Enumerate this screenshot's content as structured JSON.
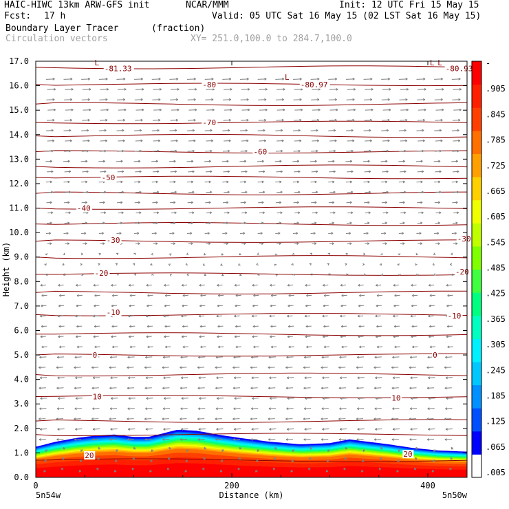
{
  "header": {
    "model": "HAIC-HIWC 13km ARW-GFS init",
    "org": "NCAR/MMM",
    "init": "Init: 12 UTC Fri 15 May 15",
    "fcst_label": "Fcst:",
    "fcst_value": "17 h",
    "valid": "Valid: 05 UTC Sat 16 May 15 (02 LST Sat 16 May 15)",
    "field": "Boundary Layer Tracer",
    "field_units": "(fraction)",
    "vectors": "Circulation vectors",
    "xy": "XY= 251.0,100.0 to 284.7,100.0"
  },
  "colors": {
    "contour": "#8b0000",
    "vector": "#808080",
    "axis": "#000000",
    "colorbar": [
      "#ffffff",
      "#0000ff",
      "#0050ff",
      "#0090ff",
      "#00c8ff",
      "#00f0ff",
      "#00ffc0",
      "#00ff80",
      "#40ff40",
      "#80ff00",
      "#c0ff00",
      "#f0ff00",
      "#ffd000",
      "#ffa000",
      "#ff7000",
      "#ff4000",
      "#ff2000",
      "#ff0000"
    ]
  },
  "chart_data": {
    "type": "heatmap",
    "xlabel": "Distance (km)",
    "ylabel": "Height (km)",
    "xlim": [
      0,
      440
    ],
    "ylim": [
      0.0,
      17.0
    ],
    "x_ticks": [
      {
        "v": 0,
        "label": "0"
      },
      {
        "v": 200,
        "label": "200"
      },
      {
        "v": 400,
        "label": "400"
      }
    ],
    "x_end_labels": {
      "left": "5n54w",
      "right": "5n50w"
    },
    "y_ticks": [
      {
        "v": 0.0,
        "label": "0.0"
      },
      {
        "v": 1.0,
        "label": "1.0"
      },
      {
        "v": 2.0,
        "label": "2.0"
      },
      {
        "v": 3.0,
        "label": "3.0"
      },
      {
        "v": 4.0,
        "label": "4.0"
      },
      {
        "v": 5.0,
        "label": "5.0"
      },
      {
        "v": 6.0,
        "label": "6.0"
      },
      {
        "v": 7.0,
        "label": "7.0"
      },
      {
        "v": 8.0,
        "label": "8.0"
      },
      {
        "v": 9.0,
        "label": "9.0"
      },
      {
        "v": 10.0,
        "label": "10.0"
      },
      {
        "v": 11.0,
        "label": "11.0"
      },
      {
        "v": 12.0,
        "label": "12.0"
      },
      {
        "v": 13.0,
        "label": "13.0"
      },
      {
        "v": 14.0,
        "label": "14.0"
      },
      {
        "v": 15.0,
        "label": "15.0"
      },
      {
        "v": 16.0,
        "label": "16.0"
      },
      {
        "v": 17.0,
        "label": "17.0"
      }
    ],
    "colorbar_labels": [
      "-",
      ".905",
      ".845",
      ".785",
      ".725",
      ".665",
      ".605",
      ".545",
      ".485",
      ".425",
      ".365",
      ".305",
      ".245",
      ".185",
      ".125",
      ".065",
      ".005"
    ],
    "colorbar_values": [
      0.965,
      0.905,
      0.845,
      0.785,
      0.725,
      0.665,
      0.605,
      0.545,
      0.485,
      0.425,
      0.365,
      0.305,
      0.245,
      0.185,
      0.125,
      0.065,
      0.005
    ],
    "boundary_layer_top": [
      {
        "x": 0,
        "h": 1.25
      },
      {
        "x": 20,
        "h": 1.45
      },
      {
        "x": 40,
        "h": 1.6
      },
      {
        "x": 60,
        "h": 1.7
      },
      {
        "x": 80,
        "h": 1.75
      },
      {
        "x": 100,
        "h": 1.65
      },
      {
        "x": 115,
        "h": 1.65
      },
      {
        "x": 130,
        "h": 1.8
      },
      {
        "x": 145,
        "h": 1.95
      },
      {
        "x": 165,
        "h": 1.9
      },
      {
        "x": 185,
        "h": 1.75
      },
      {
        "x": 210,
        "h": 1.6
      },
      {
        "x": 240,
        "h": 1.45
      },
      {
        "x": 270,
        "h": 1.35
      },
      {
        "x": 300,
        "h": 1.4
      },
      {
        "x": 320,
        "h": 1.55
      },
      {
        "x": 340,
        "h": 1.45
      },
      {
        "x": 360,
        "h": 1.35
      },
      {
        "x": 385,
        "h": 1.2
      },
      {
        "x": 410,
        "h": 1.1
      },
      {
        "x": 440,
        "h": 1.05
      }
    ],
    "isotherm_heights": [
      0.7,
      1.75,
      2.3,
      3.3,
      4.2,
      5.0,
      5.85,
      6.65,
      7.55,
      8.3,
      9.0,
      9.65,
      10.35,
      11.0,
      11.6,
      12.25,
      12.7,
      13.3,
      13.95,
      14.5,
      15.25,
      16.05,
      16.75
    ],
    "contour_labels": [
      {
        "text": "20",
        "x": 50,
        "h": 0.9
      },
      {
        "text": "20",
        "x": 375,
        "h": 0.95
      },
      {
        "text": "10",
        "x": 58,
        "h": 3.3
      },
      {
        "text": "10",
        "x": 363,
        "h": 3.25
      },
      {
        "text": "0",
        "x": 58,
        "h": 5.0
      },
      {
        "text": "0",
        "x": 405,
        "h": 5.0
      },
      {
        "text": "-10",
        "x": 72,
        "h": 6.75
      },
      {
        "text": "-10",
        "x": 420,
        "h": 6.6
      },
      {
        "text": "-20",
        "x": 60,
        "h": 8.35
      },
      {
        "text": "-20",
        "x": 428,
        "h": 8.4
      },
      {
        "text": "-30",
        "x": 72,
        "h": 9.7
      },
      {
        "text": "-30",
        "x": 430,
        "h": 9.75
      },
      {
        "text": "-40",
        "x": 42,
        "h": 11.0
      },
      {
        "text": "-50",
        "x": 67,
        "h": 12.25
      },
      {
        "text": "-60",
        "x": 222,
        "h": 13.3
      },
      {
        "text": "-70",
        "x": 170,
        "h": 14.5
      },
      {
        "text": "-80",
        "x": 170,
        "h": 16.05
      },
      {
        "text": "-80.97",
        "x": 270,
        "h": 16.05
      },
      {
        "text": "-81.33",
        "x": 70,
        "h": 16.7
      },
      {
        "text": "-80.93",
        "x": 418,
        "h": 16.7
      }
    ],
    "lows": [
      {
        "text": "L",
        "x": 60,
        "h": 16.95
      },
      {
        "text": "L",
        "x": 254,
        "h": 16.35
      },
      {
        "text": "L",
        "x": 402,
        "h": 16.95
      },
      {
        "text": "L",
        "x": 410,
        "h": 16.95
      }
    ]
  }
}
